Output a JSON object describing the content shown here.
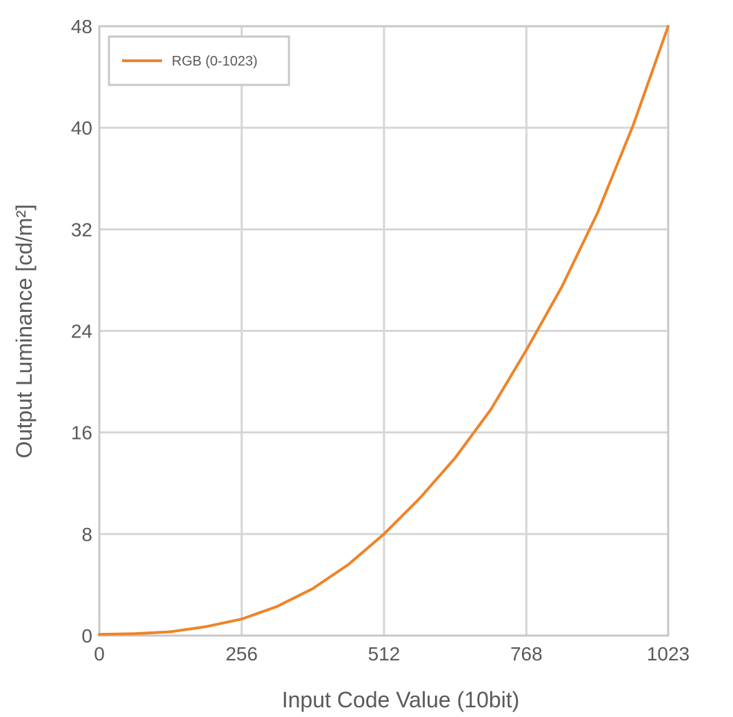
{
  "chart_data": {
    "type": "line",
    "title": "",
    "xlabel": "Input Code Value (10bit)",
    "ylabel": "Output Luminance [cd/m²]",
    "xlim": [
      0,
      1023
    ],
    "ylim": [
      0,
      48
    ],
    "x_ticks": [
      0,
      256,
      512,
      768,
      1023
    ],
    "y_ticks": [
      0,
      8,
      16,
      24,
      32,
      40,
      48
    ],
    "grid": true,
    "legend_position": "top-left",
    "series": [
      {
        "name": "RGB (0-1023)",
        "color": "#ee8428",
        "x": [
          0,
          64,
          128,
          192,
          256,
          320,
          384,
          448,
          512,
          576,
          640,
          704,
          768,
          832,
          896,
          960,
          1023
        ],
        "y": [
          0.1,
          0.15,
          0.3,
          0.7,
          1.3,
          2.3,
          3.7,
          5.6,
          8.0,
          10.8,
          14.0,
          17.8,
          22.5,
          27.5,
          33.3,
          40.2,
          48.0
        ]
      }
    ]
  }
}
